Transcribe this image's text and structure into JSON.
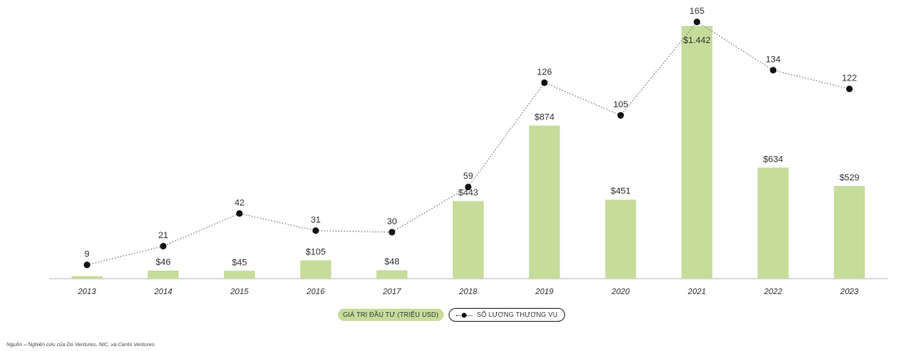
{
  "chart_data": {
    "type": "bar",
    "categories": [
      "2013",
      "2014",
      "2015",
      "2016",
      "2017",
      "2018",
      "2019",
      "2020",
      "2021",
      "2022",
      "2023"
    ],
    "series": [
      {
        "name": "GIÁ TRỊ ĐẦU TƯ (TRIỆU USD)",
        "kind": "bar",
        "values": [
          14,
          46,
          45,
          105,
          48,
          443,
          874,
          451,
          1442,
          634,
          529
        ],
        "labels": [
          "",
          "$46",
          "$45",
          "$105",
          "$48",
          "$443",
          "$874",
          "$451",
          "$1.442",
          "$634",
          "$529"
        ],
        "color": "#c5dc9b"
      },
      {
        "name": "SỐ LƯỢNG THƯƠNG VỤ",
        "kind": "line",
        "values": [
          9,
          21,
          42,
          31,
          30,
          59,
          126,
          105,
          165,
          134,
          122
        ],
        "labels": [
          "9",
          "21",
          "42",
          "31",
          "30",
          "59",
          "126",
          "105",
          "165",
          "134",
          "122"
        ],
        "color": "#111111",
        "line_style": "dotted"
      }
    ],
    "legend_position": "bottom-center",
    "grid": false,
    "bar_axis_max": 1442,
    "line_axis_max": 165
  },
  "source_note": "Nguồn – Nghiên cứu của Do Ventures, NIC, và Cento Ventures"
}
